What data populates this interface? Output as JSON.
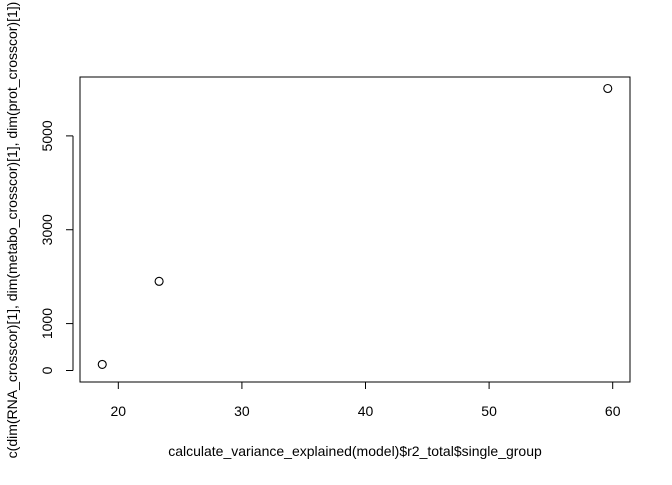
{
  "chart_data": {
    "type": "scatter",
    "xlabel": "calculate_variance_explained(model)$r2_total$single_group",
    "ylabel": "c(dim(RNA_crosscor)[1], dim(metabo_crosscor)[1], dim(prot_crosscor)[1])",
    "xlim": [
      16.9,
      61.4
    ],
    "ylim": [
      -245,
      6255
    ],
    "x_ticks": [
      20,
      30,
      40,
      50,
      60
    ],
    "y_ticks": [
      0,
      1000,
      3000,
      5000
    ],
    "points": [
      {
        "x": 18.7,
        "y": 130
      },
      {
        "x": 23.3,
        "y": 1900
      },
      {
        "x": 59.6,
        "y": 6010
      }
    ],
    "marker": "open-circle",
    "grid": false,
    "legend": "none",
    "colors": {
      "axis": "#000000",
      "point_stroke": "#000000",
      "background": "#ffffff"
    }
  }
}
